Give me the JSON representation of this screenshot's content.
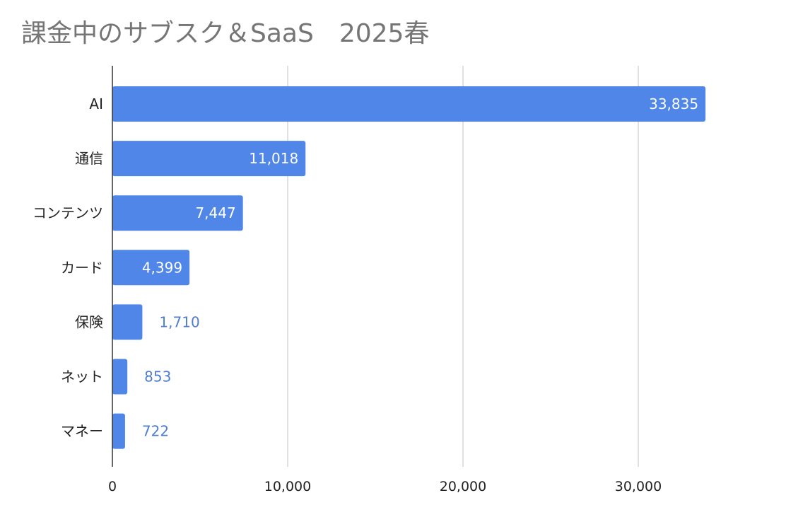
{
  "chart_data": {
    "type": "bar",
    "orientation": "horizontal",
    "title": "課金中のサブスク＆SaaS　2025春",
    "categories": [
      "AI",
      "通信",
      "コンテンツ",
      "カード",
      "保険",
      "ネット",
      "マネー"
    ],
    "values": [
      33835,
      11018,
      7447,
      4399,
      1710,
      853,
      722
    ],
    "value_labels": [
      "33,835",
      "11,018",
      "7,447",
      "4,399",
      "1,710",
      "853",
      "722"
    ],
    "x_ticks": [
      0,
      10000,
      20000,
      30000
    ],
    "x_tick_labels": [
      "0",
      "10,000",
      "20,000",
      "30,000"
    ],
    "xlim": [
      0,
      37000
    ],
    "grid": true,
    "legend": "none",
    "colors": {
      "bar": "#4f86e8",
      "label_inside": "#ffffff",
      "label_outside": "#4f7dd0",
      "grid": "#cccccc",
      "axis": "#333333",
      "title": "#757575"
    }
  }
}
